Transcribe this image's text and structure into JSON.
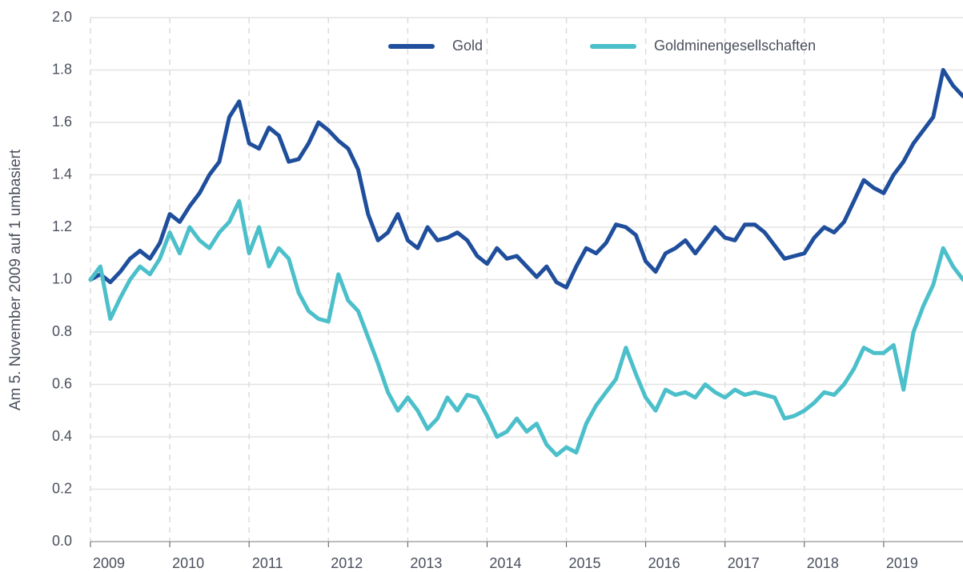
{
  "chart_data": {
    "type": "line",
    "y_label": "Am 5. November 2009 auf 1 umbasiert",
    "x": [
      2009,
      2009.125,
      2009.25,
      2009.375,
      2009.5,
      2009.625,
      2009.75,
      2009.875,
      2010,
      2010.125,
      2010.25,
      2010.375,
      2010.5,
      2010.625,
      2010.75,
      2010.875,
      2011,
      2011.125,
      2011.25,
      2011.375,
      2011.5,
      2011.625,
      2011.75,
      2011.875,
      2012,
      2012.125,
      2012.25,
      2012.375,
      2012.5,
      2012.625,
      2012.75,
      2012.875,
      2013,
      2013.125,
      2013.25,
      2013.375,
      2013.5,
      2013.625,
      2013.75,
      2013.875,
      2014,
      2014.125,
      2014.25,
      2014.375,
      2014.5,
      2014.625,
      2014.75,
      2014.875,
      2015,
      2015.125,
      2015.25,
      2015.375,
      2015.5,
      2015.625,
      2015.75,
      2015.875,
      2016,
      2016.125,
      2016.25,
      2016.375,
      2016.5,
      2016.625,
      2016.75,
      2016.875,
      2017,
      2017.125,
      2017.25,
      2017.375,
      2017.5,
      2017.625,
      2017.75,
      2017.875,
      2018,
      2018.125,
      2018.25,
      2018.375,
      2018.5,
      2018.625,
      2018.75,
      2018.875,
      2019,
      2019.125,
      2019.25,
      2019.375,
      2019.5,
      2019.625,
      2019.75,
      2019.875,
      2020
    ],
    "series": [
      {
        "name": "Gold",
        "color": "#1f4e9c",
        "values": [
          1.0,
          1.02,
          0.99,
          1.03,
          1.08,
          1.11,
          1.08,
          1.14,
          1.25,
          1.22,
          1.28,
          1.33,
          1.4,
          1.45,
          1.62,
          1.68,
          1.52,
          1.5,
          1.58,
          1.55,
          1.45,
          1.46,
          1.52,
          1.6,
          1.57,
          1.53,
          1.5,
          1.42,
          1.25,
          1.15,
          1.18,
          1.25,
          1.15,
          1.12,
          1.2,
          1.15,
          1.16,
          1.18,
          1.15,
          1.09,
          1.06,
          1.12,
          1.08,
          1.09,
          1.05,
          1.01,
          1.05,
          0.99,
          0.97,
          1.05,
          1.12,
          1.1,
          1.14,
          1.21,
          1.2,
          1.17,
          1.07,
          1.03,
          1.1,
          1.12,
          1.15,
          1.1,
          1.15,
          1.2,
          1.16,
          1.15,
          1.21,
          1.21,
          1.18,
          1.13,
          1.08,
          1.09,
          1.1,
          1.16,
          1.2,
          1.18,
          1.22,
          1.3,
          1.38,
          1.35,
          1.33,
          1.4,
          1.45,
          1.52,
          1.57,
          1.62,
          1.8,
          1.74,
          1.7
        ]
      },
      {
        "name": "Goldminengesellschaften",
        "color": "#4bbfca",
        "values": [
          1.0,
          1.05,
          0.85,
          0.93,
          1.0,
          1.05,
          1.02,
          1.08,
          1.18,
          1.1,
          1.2,
          1.15,
          1.12,
          1.18,
          1.22,
          1.3,
          1.1,
          1.2,
          1.05,
          1.12,
          1.08,
          0.95,
          0.88,
          0.85,
          0.84,
          1.02,
          0.92,
          0.88,
          0.78,
          0.68,
          0.57,
          0.5,
          0.55,
          0.5,
          0.43,
          0.47,
          0.55,
          0.5,
          0.56,
          0.55,
          0.48,
          0.4,
          0.42,
          0.47,
          0.42,
          0.45,
          0.37,
          0.33,
          0.36,
          0.34,
          0.45,
          0.52,
          0.57,
          0.62,
          0.74,
          0.64,
          0.55,
          0.5,
          0.58,
          0.56,
          0.57,
          0.55,
          0.6,
          0.57,
          0.55,
          0.58,
          0.56,
          0.57,
          0.56,
          0.55,
          0.47,
          0.48,
          0.5,
          0.53,
          0.57,
          0.56,
          0.6,
          0.66,
          0.74,
          0.72,
          0.72,
          0.75,
          0.58,
          0.8,
          0.9,
          0.98,
          1.12,
          1.05,
          1.0
        ]
      }
    ],
    "xlim": [
      2009,
      2020
    ],
    "xticks": [
      2009,
      2010,
      2011,
      2012,
      2013,
      2014,
      2015,
      2016,
      2017,
      2018,
      2019
    ],
    "ylim": [
      0,
      2
    ],
    "yticks": [
      {
        "value": 0,
        "label": "0.0"
      },
      {
        "value": 0.2,
        "label": "0.2"
      },
      {
        "value": 0.4,
        "label": "0.4"
      },
      {
        "value": 0.6,
        "label": "0.6"
      },
      {
        "value": 0.8,
        "label": "0.8"
      },
      {
        "value": 1,
        "label": "1.0"
      },
      {
        "value": 1.2,
        "label": "1.2"
      },
      {
        "value": 1.4,
        "label": "1.4"
      },
      {
        "value": 1.6,
        "label": "1.6"
      },
      {
        "value": 1.8,
        "label": "1.8"
      },
      {
        "value": 2,
        "label": "2.0"
      }
    ],
    "grid": true,
    "legend": "top"
  }
}
